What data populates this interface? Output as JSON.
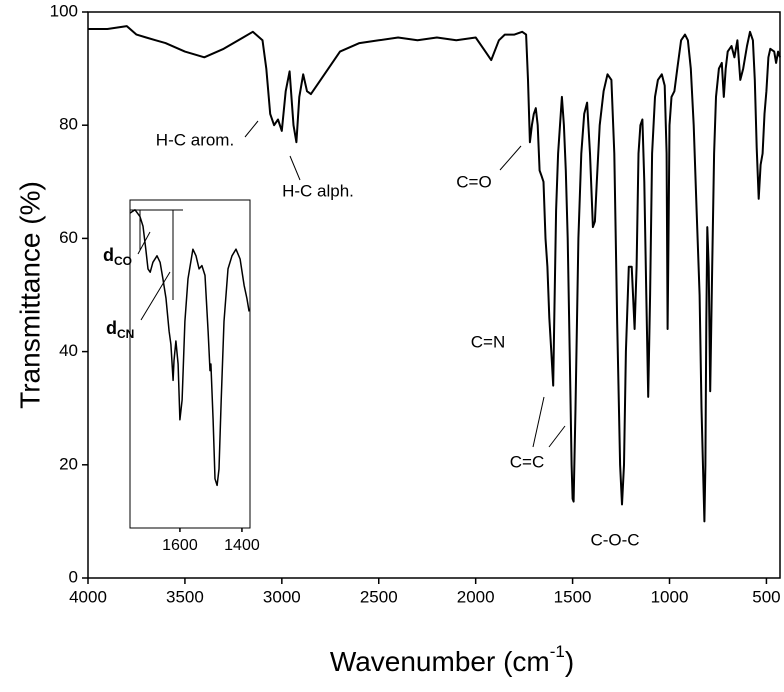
{
  "chart_data": [
    {
      "type": "line",
      "ylabel": "Transmittance (%)",
      "xlabel": "Wavenumber (cm",
      "xlabel_sup": "-1",
      "xlabel_end": ")",
      "xlim": [
        4000,
        430
      ],
      "ylim": [
        0,
        100
      ],
      "xticks": [
        4000,
        3500,
        3000,
        2500,
        2000,
        1500,
        1000,
        500
      ],
      "yticks": [
        0,
        20,
        40,
        60,
        80,
        100
      ],
      "color": "#000000",
      "x": [
        4000,
        3900,
        3800,
        3750,
        3700,
        3650,
        3600,
        3500,
        3400,
        3300,
        3200,
        3150,
        3100,
        3080,
        3060,
        3040,
        3020,
        3000,
        2980,
        2960,
        2940,
        2925,
        2910,
        2890,
        2870,
        2850,
        2800,
        2700,
        2600,
        2500,
        2400,
        2300,
        2200,
        2100,
        2000,
        1950,
        1920,
        1880,
        1850,
        1800,
        1760,
        1740,
        1730,
        1720,
        1710,
        1700,
        1690,
        1680,
        1670,
        1660,
        1650,
        1640,
        1630,
        1620,
        1610,
        1600,
        1595,
        1585,
        1575,
        1565,
        1555,
        1545,
        1535,
        1525,
        1515,
        1505,
        1500,
        1495,
        1485,
        1470,
        1455,
        1440,
        1425,
        1410,
        1395,
        1385,
        1375,
        1360,
        1340,
        1320,
        1300,
        1285,
        1270,
        1255,
        1245,
        1235,
        1225,
        1210,
        1195,
        1180,
        1170,
        1160,
        1150,
        1140,
        1130,
        1120,
        1110,
        1100,
        1090,
        1075,
        1060,
        1040,
        1025,
        1015,
        1010,
        1005,
        1000,
        990,
        975,
        960,
        940,
        920,
        905,
        890,
        875,
        860,
        845,
        835,
        820,
        815,
        810,
        805,
        798,
        790,
        780,
        770,
        760,
        745,
        730,
        720,
        710,
        700,
        680,
        665,
        650,
        635,
        620,
        600,
        585,
        570,
        560,
        550,
        540,
        530,
        520,
        510,
        500,
        490,
        480,
        460,
        450,
        440,
        430
      ],
      "values": [
        97,
        97,
        97.5,
        96,
        95.5,
        95,
        94.5,
        93,
        92,
        93.5,
        95.5,
        96.5,
        95,
        90,
        82,
        80,
        81,
        79,
        86,
        89.5,
        80,
        77,
        85,
        89,
        86,
        85.5,
        88,
        93,
        94.5,
        95,
        95.5,
        95,
        95.5,
        95,
        95.5,
        93,
        91.5,
        95,
        96,
        96,
        96.5,
        96,
        88,
        77,
        80,
        82,
        83,
        80,
        72,
        71,
        70,
        60,
        55,
        46,
        40,
        34,
        45,
        65,
        75,
        80,
        85,
        80,
        72,
        60,
        40,
        20,
        14,
        13.5,
        30,
        60,
        75,
        82,
        84,
        75,
        62,
        63,
        70,
        80,
        86,
        89,
        88,
        75,
        45,
        20,
        13,
        20,
        40,
        55,
        55,
        44,
        55,
        75,
        80,
        81,
        70,
        50,
        32,
        50,
        75,
        85,
        88,
        89,
        87,
        75,
        44,
        60,
        80,
        85,
        86,
        90,
        95,
        96,
        95,
        90,
        80,
        65,
        50,
        30,
        10,
        20,
        45,
        62,
        55,
        33,
        55,
        75,
        85,
        90,
        91,
        85,
        90,
        93,
        94,
        92,
        95,
        88,
        90,
        94,
        96.5,
        95,
        88,
        76,
        67,
        73,
        75,
        82,
        86,
        92,
        93.5,
        93,
        91,
        93,
        92
      ],
      "annotations": [
        "H-C arom.",
        "H-C alph.",
        "C=O",
        "C=N",
        "C=C",
        "C-O-C"
      ]
    },
    {
      "type": "line",
      "xlim": [
        1761,
        1374
      ],
      "ylim": [
        0,
        100
      ],
      "xticks": [
        1600,
        1400
      ],
      "color": "#000000",
      "x": [
        1761,
        1745,
        1729,
        1719,
        1710,
        1703,
        1696,
        1687,
        1674,
        1664,
        1655,
        1645,
        1635,
        1629,
        1622,
        1619,
        1613,
        1606,
        1600,
        1593,
        1584,
        1574,
        1558,
        1548,
        1538,
        1529,
        1519,
        1509,
        1503,
        1500,
        1493,
        1487,
        1480,
        1474,
        1467,
        1458,
        1445,
        1432,
        1419,
        1406,
        1393,
        1384,
        1377
      ],
      "values": [
        96,
        97,
        95,
        92,
        85,
        79,
        78,
        81,
        83,
        81,
        76,
        70,
        60,
        56,
        45,
        51,
        57,
        50,
        33,
        39,
        63,
        76,
        85,
        83,
        79,
        80,
        77,
        60,
        48,
        50,
        33,
        15,
        13,
        18,
        39,
        63,
        79,
        83,
        85,
        82,
        74,
        70,
        66
      ],
      "annotations": [
        {
          "text": "d",
          "sub": "CO"
        },
        {
          "text": "d",
          "sub": "CN"
        }
      ]
    }
  ]
}
